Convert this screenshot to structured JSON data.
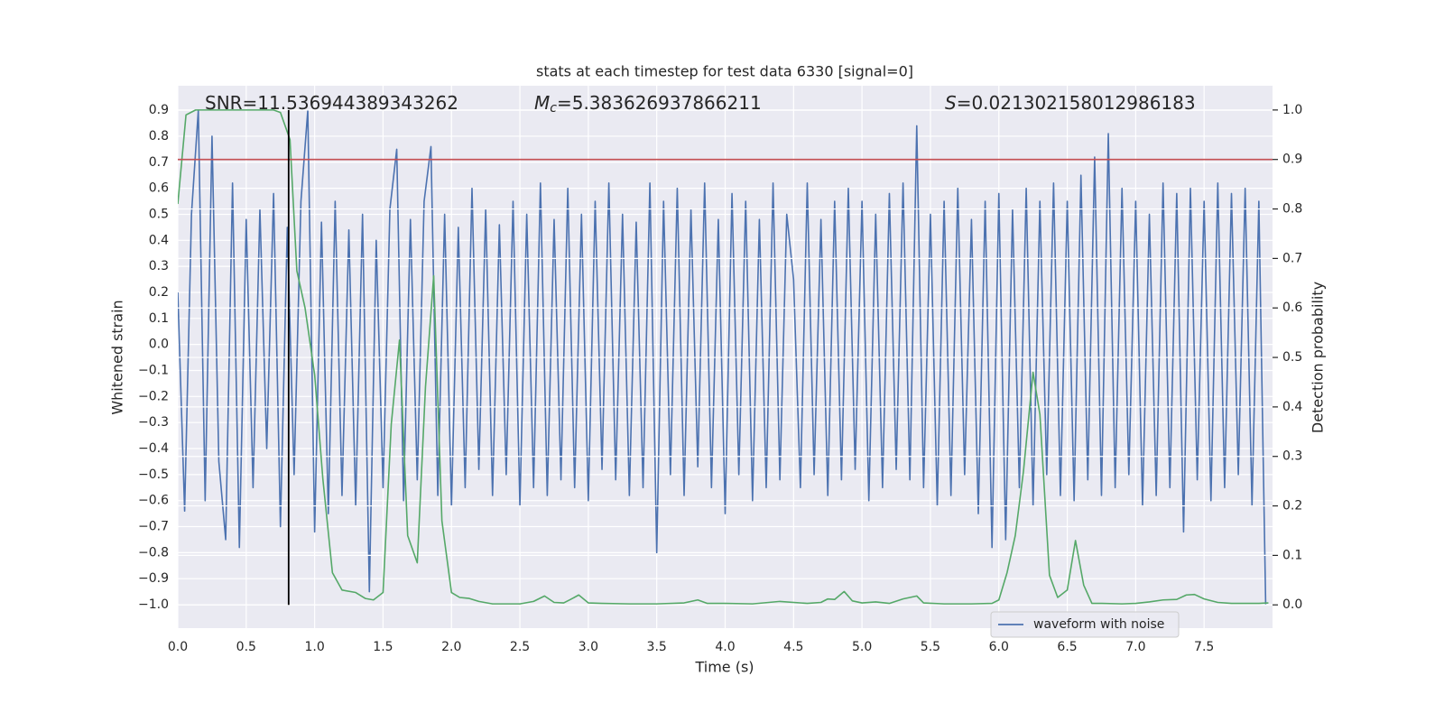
{
  "chart_data": {
    "type": "line",
    "title": "stats at each timestep for test data 6330 [signal=0]",
    "xlabel": "Time (s)",
    "ylabel": "Whitened strain",
    "y2label": "Detection probability",
    "annotations": [
      {
        "text": "SNR=11.536944389343262"
      },
      {
        "symbol": "M",
        "subscript": "c",
        "text": "=5.383626937866211"
      },
      {
        "symbol": "S",
        "text": "=0.021302158012986183"
      }
    ],
    "xlim": [
      0,
      8.0
    ],
    "ylim": [
      -1.09,
      0.994
    ],
    "y2lim": [
      -0.047,
      1.049
    ],
    "xticks": [
      {
        "value": 0,
        "label": "0.0"
      },
      {
        "value": 0.5,
        "label": "0.5"
      },
      {
        "value": 1,
        "label": "1.0"
      },
      {
        "value": 1.5,
        "label": "1.5"
      },
      {
        "value": 2,
        "label": "2.0"
      },
      {
        "value": 2.5,
        "label": "2.5"
      },
      {
        "value": 3,
        "label": "3.0"
      },
      {
        "value": 3.5,
        "label": "3.5"
      },
      {
        "value": 4,
        "label": "4.0"
      },
      {
        "value": 4.5,
        "label": "4.5"
      },
      {
        "value": 5,
        "label": "5.0"
      },
      {
        "value": 5.5,
        "label": "5.5"
      },
      {
        "value": 6,
        "label": "6.0"
      },
      {
        "value": 6.5,
        "label": "6.5"
      },
      {
        "value": 7,
        "label": "7.0"
      },
      {
        "value": 7.5,
        "label": "7.5"
      }
    ],
    "yticks": [
      {
        "value": -1.0,
        "label": "−1.0"
      },
      {
        "value": -0.9,
        "label": "−0.9"
      },
      {
        "value": -0.8,
        "label": "−0.8"
      },
      {
        "value": -0.7,
        "label": "−0.7"
      },
      {
        "value": -0.6,
        "label": "−0.6"
      },
      {
        "value": -0.5,
        "label": "−0.5"
      },
      {
        "value": -0.4,
        "label": "−0.4"
      },
      {
        "value": -0.3,
        "label": "−0.3"
      },
      {
        "value": -0.2,
        "label": "−0.2"
      },
      {
        "value": -0.1,
        "label": "−0.1"
      },
      {
        "value": 0,
        "label": "0.0"
      },
      {
        "value": 0.1,
        "label": "0.1"
      },
      {
        "value": 0.2,
        "label": "0.2"
      },
      {
        "value": 0.3,
        "label": "0.3"
      },
      {
        "value": 0.4,
        "label": "0.4"
      },
      {
        "value": 0.5,
        "label": "0.5"
      },
      {
        "value": 0.6,
        "label": "0.6"
      },
      {
        "value": 0.7,
        "label": "0.7"
      },
      {
        "value": 0.8,
        "label": "0.8"
      },
      {
        "value": 0.9,
        "label": "0.9"
      }
    ],
    "y2ticks": [
      {
        "value": 0,
        "label": "0.0"
      },
      {
        "value": 0.1,
        "label": "0.1"
      },
      {
        "value": 0.2,
        "label": "0.2"
      },
      {
        "value": 0.3,
        "label": "0.3"
      },
      {
        "value": 0.4,
        "label": "0.4"
      },
      {
        "value": 0.5,
        "label": "0.5"
      },
      {
        "value": 0.6,
        "label": "0.6"
      },
      {
        "value": 0.7,
        "label": "0.7"
      },
      {
        "value": 0.8,
        "label": "0.8"
      },
      {
        "value": 0.9,
        "label": "0.9"
      },
      {
        "value": 1.0,
        "label": "1.0"
      }
    ],
    "grid": true,
    "legend": "lower right",
    "series": [
      {
        "name": "waveform with noise",
        "color": "#4c72b0",
        "legend": true,
        "x": [
          0.0,
          0.05,
          0.1,
          0.15,
          0.2,
          0.25,
          0.3,
          0.35,
          0.4,
          0.45,
          0.5,
          0.55,
          0.6,
          0.65,
          0.7,
          0.75,
          0.8,
          0.85,
          0.9,
          0.95,
          1.0,
          1.05,
          1.1,
          1.15,
          1.2,
          1.25,
          1.3,
          1.35,
          1.4,
          1.45,
          1.5,
          1.55,
          1.6,
          1.65,
          1.7,
          1.75,
          1.8,
          1.85,
          1.9,
          1.95,
          2.0,
          2.05,
          2.1,
          2.15,
          2.2,
          2.25,
          2.3,
          2.35,
          2.4,
          2.45,
          2.5,
          2.55,
          2.6,
          2.65,
          2.7,
          2.75,
          2.8,
          2.85,
          2.9,
          2.95,
          3.0,
          3.05,
          3.1,
          3.15,
          3.2,
          3.25,
          3.3,
          3.35,
          3.4,
          3.45,
          3.5,
          3.55,
          3.6,
          3.65,
          3.7,
          3.75,
          3.8,
          3.85,
          3.9,
          3.95,
          4.0,
          4.05,
          4.1,
          4.15,
          4.2,
          4.25,
          4.3,
          4.35,
          4.4,
          4.45,
          4.5,
          4.55,
          4.6,
          4.65,
          4.7,
          4.75,
          4.8,
          4.85,
          4.9,
          4.95,
          5.0,
          5.05,
          5.1,
          5.15,
          5.2,
          5.25,
          5.3,
          5.35,
          5.4,
          5.45,
          5.5,
          5.55,
          5.6,
          5.65,
          5.7,
          5.75,
          5.8,
          5.85,
          5.9,
          5.95,
          6.0,
          6.05,
          6.1,
          6.15,
          6.2,
          6.25,
          6.3,
          6.35,
          6.4,
          6.45,
          6.5,
          6.55,
          6.6,
          6.65,
          6.7,
          6.75,
          6.8,
          6.85,
          6.9,
          6.95,
          7.0,
          7.05,
          7.1,
          7.15,
          7.2,
          7.25,
          7.3,
          7.35,
          7.4,
          7.45,
          7.5,
          7.55,
          7.6,
          7.65,
          7.7,
          7.75,
          7.8,
          7.85,
          7.9,
          7.95
        ],
        "values": [
          0.2,
          -0.64,
          0.5,
          0.9,
          -0.6,
          0.8,
          -0.45,
          -0.75,
          0.62,
          -0.78,
          0.48,
          -0.55,
          0.52,
          -0.4,
          0.58,
          -0.7,
          0.45,
          -0.5,
          0.55,
          0.9,
          -0.72,
          0.47,
          -0.65,
          0.55,
          -0.58,
          0.44,
          -0.62,
          0.5,
          -0.95,
          0.4,
          -0.55,
          0.52,
          0.75,
          -0.6,
          0.48,
          -0.52,
          0.55,
          0.76,
          -0.58,
          0.5,
          -0.62,
          0.45,
          -0.55,
          0.6,
          -0.48,
          0.52,
          -0.58,
          0.46,
          -0.5,
          0.55,
          -0.62,
          0.5,
          -0.55,
          0.62,
          -0.58,
          0.48,
          -0.52,
          0.6,
          -0.55,
          0.5,
          -0.6,
          0.55,
          -0.48,
          0.62,
          -0.52,
          0.5,
          -0.58,
          0.47,
          -0.55,
          0.62,
          -0.8,
          0.55,
          -0.5,
          0.6,
          -0.58,
          0.52,
          -0.47,
          0.62,
          -0.55,
          0.48,
          -0.65,
          0.58,
          -0.5,
          0.55,
          -0.6,
          0.48,
          -0.55,
          0.62,
          -0.52,
          0.5,
          0.25,
          -0.55,
          0.62,
          -0.5,
          0.48,
          -0.58,
          0.55,
          -0.52,
          0.6,
          -0.48,
          0.55,
          -0.6,
          0.5,
          -0.55,
          0.58,
          -0.48,
          0.62,
          -0.52,
          0.84,
          -0.55,
          0.5,
          -0.62,
          0.55,
          -0.58,
          0.6,
          -0.5,
          0.48,
          -0.65,
          0.55,
          -0.78,
          0.58,
          -0.75,
          0.52,
          -0.55,
          0.6,
          -0.62,
          0.55,
          -0.5,
          0.62,
          -0.58,
          0.55,
          -0.6,
          0.65,
          -0.52,
          0.72,
          -0.58,
          0.81,
          -0.55,
          0.6,
          -0.5,
          0.55,
          -0.62,
          0.5,
          -0.58,
          0.62,
          -0.55,
          0.58,
          -0.72,
          0.6,
          -0.52,
          0.55,
          -0.6,
          0.62,
          -0.55,
          0.58,
          -0.5,
          0.6,
          -0.62,
          0.55,
          -1.0
        ]
      },
      {
        "color": "#55a868",
        "axis": "y2",
        "x": [
          0,
          0.06,
          0.13,
          0.2,
          0.3,
          0.4,
          0.5,
          0.6,
          0.7,
          0.75,
          0.82,
          0.87,
          0.93,
          1.0,
          1.06,
          1.13,
          1.2,
          1.3,
          1.37,
          1.43,
          1.5,
          1.56,
          1.62,
          1.68,
          1.75,
          1.81,
          1.87,
          1.93,
          2.0,
          2.06,
          2.13,
          2.2,
          2.3,
          2.4,
          2.5,
          2.6,
          2.68,
          2.75,
          2.82,
          2.87,
          2.93,
          3.0,
          3.1,
          3.3,
          3.5,
          3.7,
          3.8,
          3.87,
          4.0,
          4.2,
          4.4,
          4.6,
          4.7,
          4.75,
          4.8,
          4.87,
          4.93,
          5.0,
          5.1,
          5.2,
          5.3,
          5.4,
          5.45,
          5.6,
          5.8,
          5.95,
          6.0,
          6.06,
          6.12,
          6.18,
          6.25,
          6.3,
          6.37,
          6.43,
          6.5,
          6.56,
          6.62,
          6.68,
          6.75,
          6.9,
          7.0,
          7.1,
          7.2,
          7.3,
          7.37,
          7.43,
          7.5,
          7.6,
          7.7,
          7.9,
          7.97
        ],
        "values": [
          0.81,
          0.99,
          1.0,
          1.0,
          1.0,
          1.0,
          1.0,
          1.0,
          1.0,
          0.995,
          0.94,
          0.675,
          0.6,
          0.465,
          0.255,
          0.065,
          0.03,
          0.025,
          0.013,
          0.01,
          0.025,
          0.365,
          0.535,
          0.14,
          0.085,
          0.44,
          0.665,
          0.17,
          0.025,
          0.015,
          0.013,
          0.007,
          0.002,
          0.002,
          0.002,
          0.007,
          0.018,
          0.005,
          0.004,
          0.011,
          0.02,
          0.004,
          0.003,
          0.002,
          0.002,
          0.004,
          0.01,
          0.003,
          0.003,
          0.002,
          0.007,
          0.003,
          0.005,
          0.012,
          0.011,
          0.027,
          0.008,
          0.004,
          0.006,
          0.003,
          0.012,
          0.018,
          0.004,
          0.002,
          0.002,
          0.003,
          0.01,
          0.065,
          0.14,
          0.27,
          0.47,
          0.385,
          0.06,
          0.015,
          0.03,
          0.13,
          0.04,
          0.003,
          0.003,
          0.002,
          0.003,
          0.006,
          0.01,
          0.011,
          0.02,
          0.021,
          0.012,
          0.005,
          0.003,
          0.003,
          0.004
        ]
      }
    ],
    "hline": {
      "value": 0.9,
      "axis": "y2",
      "color": "#c44e52"
    },
    "vline": {
      "value": 0.81,
      "y2range": [
        0,
        1
      ],
      "color": "#000000"
    }
  }
}
